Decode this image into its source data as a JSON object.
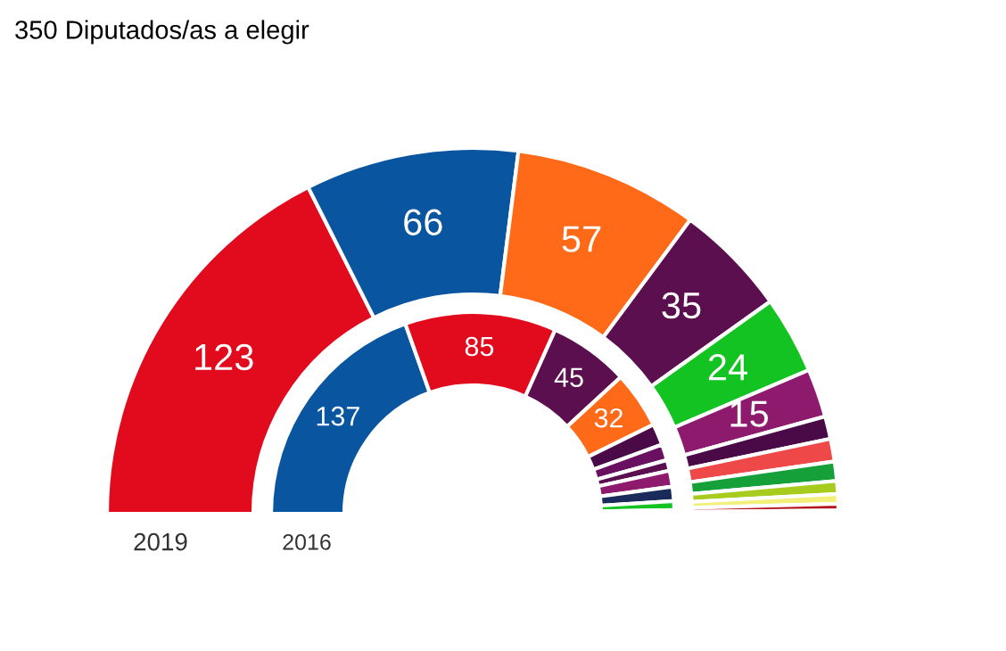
{
  "chart_data": {
    "type": "donut",
    "title": "350 Diputados/as a elegir",
    "annotations": [
      "2019",
      "2016"
    ],
    "series": [
      {
        "values": [
          123,
          66,
          57,
          35,
          24,
          15,
          7,
          7,
          6,
          4,
          3,
          2,
          1
        ],
        "value_labels": [
          "123",
          "66",
          "57",
          "35",
          "24",
          "15",
          null,
          null,
          null,
          null,
          null,
          null,
          null
        ],
        "colors": [
          "#e20a1d",
          "#0a55a0",
          "#ff6a19",
          "#5b0f4e",
          "#12c321",
          "#8e1a6e",
          "#4a0a48",
          "#ee4848",
          "#16a03a",
          "#a8cc1e",
          "#f2f07a",
          "#b4141e",
          "#f6b8c6"
        ]
      },
      {
        "values": [
          137,
          85,
          45,
          32,
          12,
          9,
          6,
          9,
          8,
          5,
          2
        ],
        "value_labels": [
          "137",
          "85",
          "45",
          "32",
          null,
          null,
          null,
          null,
          null,
          null,
          null
        ],
        "colors": [
          "#0a55a0",
          "#e20a1d",
          "#5b0f4e",
          "#ff6a19",
          "#4a0a48",
          "#6a1060",
          "#5b0f4e",
          "#8e1a6e",
          "#1a2a5a",
          "#12c321",
          "#b4d21e"
        ]
      }
    ]
  }
}
